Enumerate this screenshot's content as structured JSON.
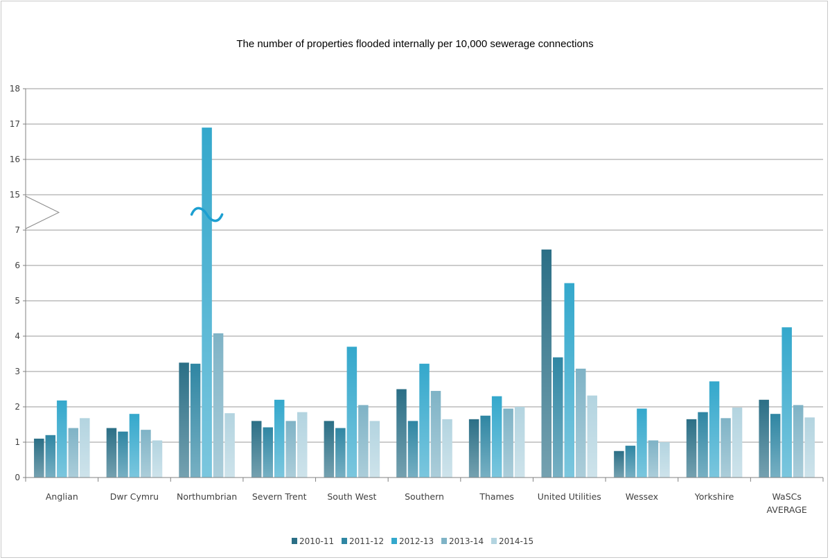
{
  "chart_data": {
    "type": "bar",
    "title": "The number of properties flooded internally per 10,000 sewerage connections",
    "xlabel": "",
    "ylabel": "",
    "y_ticks_lower": [
      "0",
      "1",
      "2",
      "3",
      "4",
      "5",
      "6",
      "7"
    ],
    "y_ticks_upper": [
      "15",
      "16",
      "17",
      "18"
    ],
    "axis_break": {
      "from": 7,
      "to": 15
    },
    "ylim": [
      0,
      18
    ],
    "grid": true,
    "legend_position": "bottom",
    "categories": [
      [
        "Anglian"
      ],
      [
        "Dwr Cymru"
      ],
      [
        "Northumbrian"
      ],
      [
        "Severn Trent"
      ],
      [
        "South West"
      ],
      [
        "Southern"
      ],
      [
        "Thames"
      ],
      [
        "United Utilities"
      ],
      [
        "Wessex"
      ],
      [
        "Yorkshire"
      ],
      [
        "WaSCs",
        "AVERAGE"
      ]
    ],
    "series": [
      {
        "name": "2010-11",
        "color": "#2b6f86",
        "values": [
          1.1,
          1.4,
          3.25,
          1.6,
          1.6,
          2.5,
          1.65,
          6.45,
          0.75,
          1.65,
          2.2
        ]
      },
      {
        "name": "2011-12",
        "color": "#2f86a3",
        "values": [
          1.2,
          1.3,
          3.22,
          1.42,
          1.4,
          1.6,
          1.75,
          3.4,
          0.9,
          1.85,
          1.8
        ]
      },
      {
        "name": "2012-13",
        "color": "#34a8cc",
        "values": [
          2.18,
          1.8,
          16.9,
          2.2,
          3.7,
          3.22,
          2.3,
          5.5,
          1.95,
          2.72,
          4.25
        ]
      },
      {
        "name": "2013-14",
        "color": "#7fb3c6",
        "values": [
          1.4,
          1.35,
          4.08,
          1.6,
          2.05,
          2.45,
          1.95,
          3.08,
          1.05,
          1.68,
          2.05
        ]
      },
      {
        "name": "2014-15",
        "color": "#b3d4e0",
        "values": [
          1.68,
          1.05,
          1.82,
          1.85,
          1.6,
          1.65,
          2.0,
          2.32,
          1.0,
          1.98,
          1.7
        ]
      }
    ]
  }
}
